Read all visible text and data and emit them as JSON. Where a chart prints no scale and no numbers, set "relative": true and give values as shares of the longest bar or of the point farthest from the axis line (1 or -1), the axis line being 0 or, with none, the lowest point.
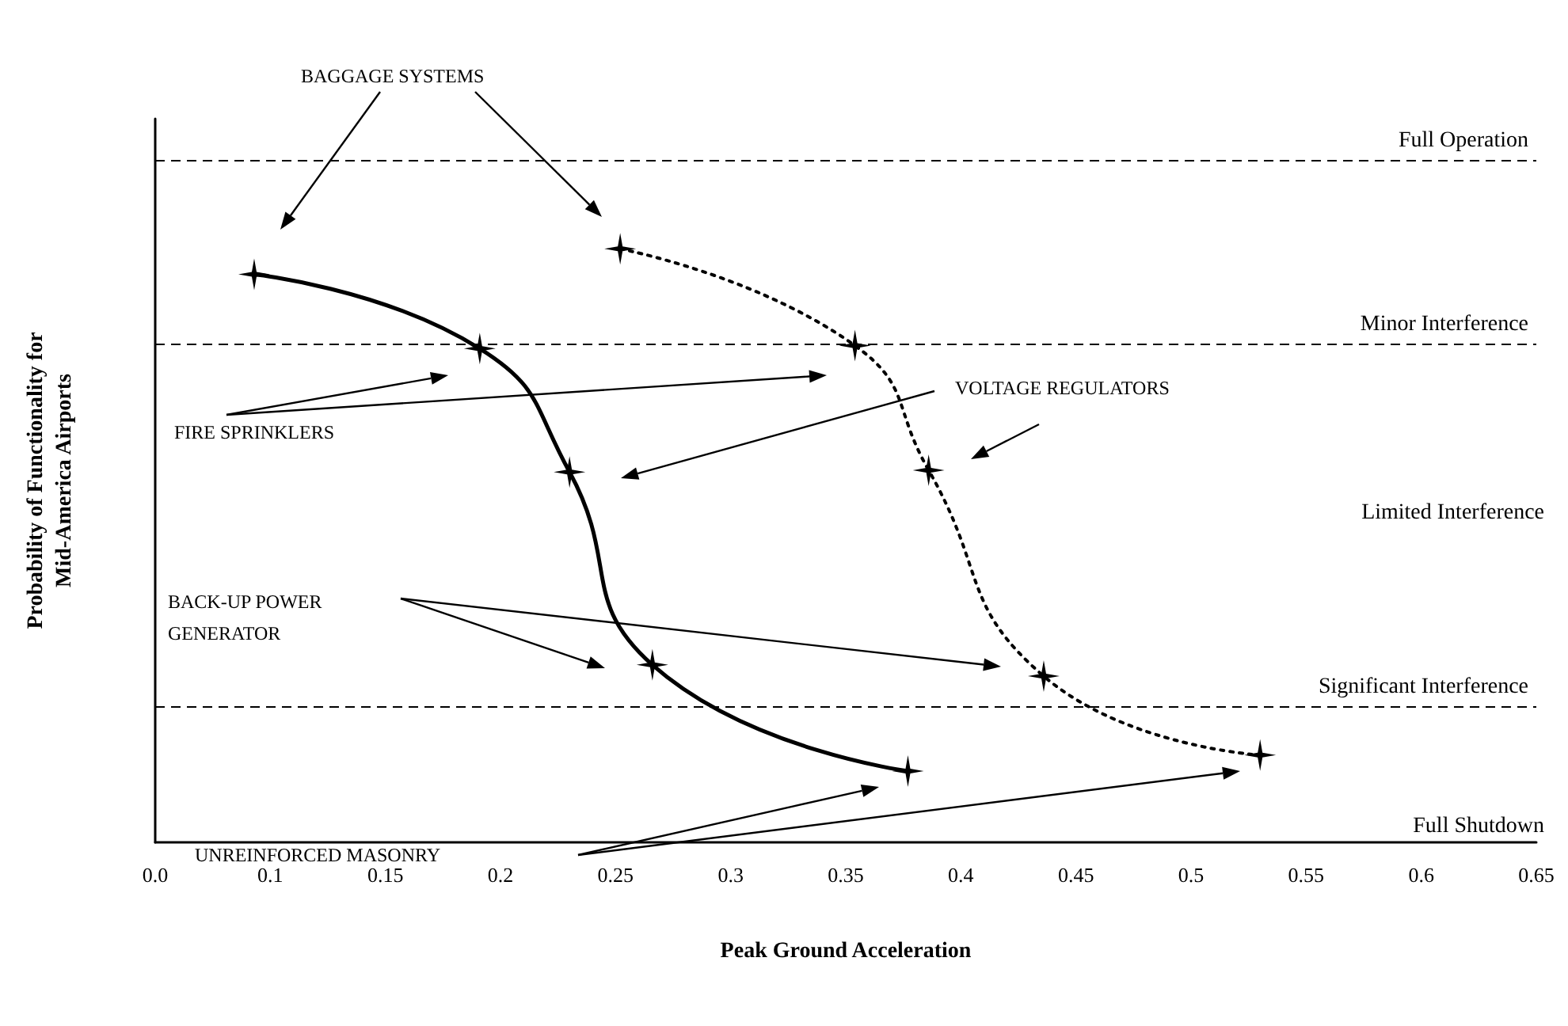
{
  "chart_data": {
    "type": "line",
    "xlabel": "Peak Ground Acceleration",
    "ylabel": "Probability of Functionality for\nMid-America Airports",
    "relative": true,
    "marker": "star",
    "grid": false,
    "xlim": [
      0.05,
      0.65
    ],
    "xticks": [
      {
        "value": 0.05,
        "label": "0.0"
      },
      0.1,
      0.15,
      0.2,
      0.25,
      0.3,
      0.35,
      0.4,
      0.45,
      0.5,
      0.55,
      0.6,
      0.65
    ],
    "series": [
      {
        "color": "#000000",
        "line_style": "solid",
        "x": [
          0.093,
          0.191,
          0.23,
          0.266,
          0.377
        ],
        "values": [
          0.957,
          0.832,
          0.624,
          0.299,
          0.12
        ]
      },
      {
        "color": "#000000",
        "line_style": "dotted",
        "x": [
          0.252,
          0.354,
          0.386,
          0.436,
          0.53
        ],
        "values": [
          1,
          0.837,
          0.627,
          0.28,
          0.147
        ]
      }
    ],
    "ref_lines": [
      {
        "axis": "y",
        "value": 1.147,
        "label": "Full Operation",
        "line_style": "dashed",
        "color": "#000000"
      },
      {
        "axis": "y",
        "value": 0.837,
        "label": "Minor Interference",
        "line_style": "dashed",
        "color": "#000000"
      },
      {
        "axis": "y",
        "value": 0.227,
        "label": "Significant Interference",
        "line_style": "dashed",
        "color": "#000000"
      }
    ],
    "annotations": [
      "BAGGAGE SYSTEMS",
      "FIRE SPRINKLERS",
      "VOLTAGE REGULATORS",
      "BACK-UP POWER\nGENERATOR",
      "UNREINFORCED MASONRY",
      "Limited Interference",
      "Full Shutdown"
    ]
  }
}
